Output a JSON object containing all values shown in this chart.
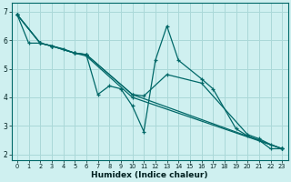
{
  "xlabel": "Humidex (Indice chaleur)",
  "bg_color": "#cff0f0",
  "grid_color": "#aad8d8",
  "line_color": "#006868",
  "xlim": [
    -0.5,
    23.5
  ],
  "ylim": [
    1.8,
    7.3
  ],
  "xticks": [
    0,
    1,
    2,
    3,
    4,
    5,
    6,
    7,
    8,
    9,
    10,
    11,
    12,
    13,
    14,
    15,
    16,
    17,
    18,
    19,
    20,
    21,
    22,
    23
  ],
  "yticks": [
    2,
    3,
    4,
    5,
    6,
    7
  ],
  "lines": [
    {
      "x": [
        0,
        1,
        2,
        3,
        4,
        5,
        6,
        7,
        8,
        9,
        10,
        11,
        12,
        13,
        14,
        16,
        17,
        19,
        20,
        21,
        22,
        23
      ],
      "y": [
        6.9,
        5.9,
        5.9,
        5.8,
        5.7,
        5.55,
        5.5,
        4.1,
        4.4,
        4.3,
        3.7,
        2.8,
        5.3,
        6.5,
        5.3,
        4.65,
        4.3,
        2.9,
        2.65,
        2.5,
        2.2,
        2.2
      ]
    },
    {
      "x": [
        0,
        2,
        3,
        5,
        6,
        10,
        11,
        13,
        16,
        20,
        21,
        22,
        23
      ],
      "y": [
        6.9,
        5.9,
        5.8,
        5.55,
        5.5,
        4.1,
        4.05,
        4.8,
        4.5,
        2.7,
        2.55,
        2.35,
        2.2
      ]
    },
    {
      "x": [
        0,
        2,
        3,
        5,
        6,
        10,
        23
      ],
      "y": [
        6.9,
        5.9,
        5.8,
        5.55,
        5.5,
        4.1,
        2.2
      ]
    },
    {
      "x": [
        0,
        2,
        3,
        5,
        6,
        10,
        23
      ],
      "y": [
        6.9,
        5.9,
        5.8,
        5.55,
        5.45,
        4.0,
        2.2
      ]
    }
  ]
}
